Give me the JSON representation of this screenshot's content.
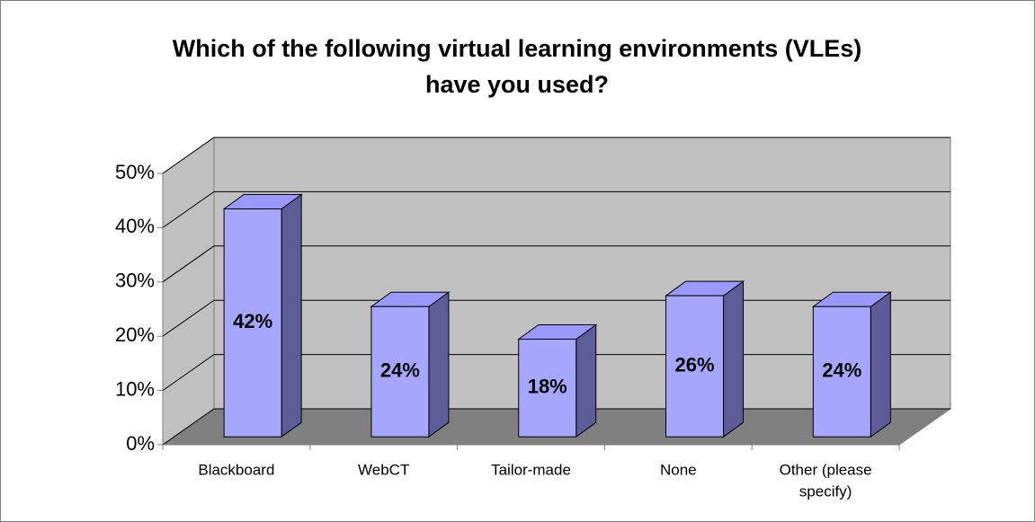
{
  "chart_data": {
    "type": "bar3d",
    "title": [
      "Which of the following virtual learning environments (VLEs)",
      "have you used?"
    ],
    "categories": [
      "Blackboard",
      "WebCT",
      "Tailor-made",
      "None",
      "Other (please specify)"
    ],
    "category_lines": [
      [
        "Blackboard"
      ],
      [
        "WebCT"
      ],
      [
        "Tailor-made"
      ],
      [
        "None"
      ],
      [
        "Other (please",
        "specify)"
      ]
    ],
    "values": [
      42,
      24,
      18,
      26,
      24
    ],
    "value_labels": [
      "42%",
      "24%",
      "18%",
      "26%",
      "24%"
    ],
    "color": "#a6a6ff",
    "ylim": [
      0,
      50
    ],
    "yticks": [
      {
        "value": 0,
        "label": "0%"
      },
      {
        "value": 10,
        "label": "10%"
      },
      {
        "value": 20,
        "label": "20%"
      },
      {
        "value": 30,
        "label": "30%"
      },
      {
        "value": 40,
        "label": "40%"
      },
      {
        "value": 50,
        "label": "50%"
      }
    ],
    "grid": true
  }
}
